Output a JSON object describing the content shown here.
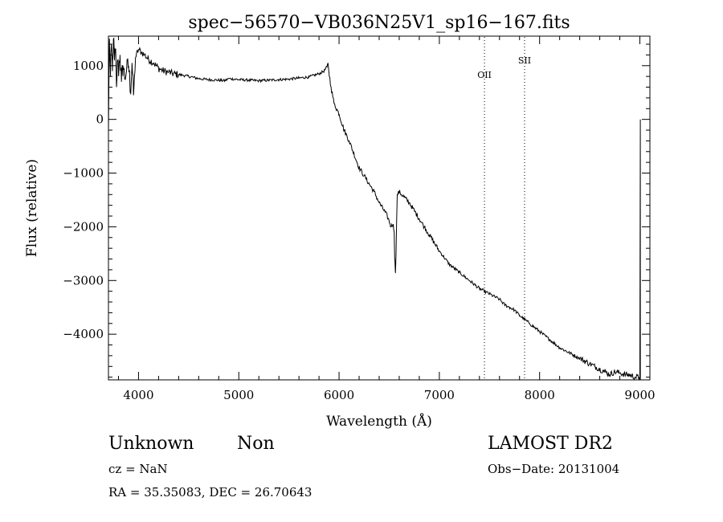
{
  "chart_data": {
    "type": "line",
    "title": "spec−56570−VB036N25V1_sp16−167.fits",
    "xlabel": "Wavelength (Å)",
    "ylabel": "Flux (relative)",
    "xlim": [
      3700,
      9100
    ],
    "ylim": [
      -4850,
      1550
    ],
    "xticks": [
      4000,
      5000,
      6000,
      7000,
      8000,
      9000
    ],
    "xtick_labels": [
      "4000",
      "5000",
      "6000",
      "7000",
      "8000",
      "9000"
    ],
    "yticks": [
      1000,
      0,
      -1000,
      -2000,
      -3000,
      -4000
    ],
    "ytick_labels": [
      "1000",
      "0",
      "−1000",
      "−2000",
      "−3000",
      "−4000"
    ],
    "grid": false,
    "line_color": "#000000",
    "series": [
      {
        "x": [
          3700,
          3710,
          3720,
          3730,
          3740,
          3750,
          3760,
          3770,
          3780,
          3790,
          3800,
          3815,
          3830,
          3845,
          3860,
          3880,
          3900,
          3920,
          3935,
          3950,
          3970,
          4000,
          4030,
          4060,
          4100,
          4150,
          4200,
          4250,
          4300,
          4340,
          4380,
          4450,
          4500,
          4600,
          4700,
          4800,
          4861,
          4900,
          5000,
          5100,
          5200,
          5300,
          5400,
          5500,
          5600,
          5700,
          5800,
          5850,
          5880,
          5890,
          5895,
          5900,
          5920,
          5950,
          6000,
          6050,
          6100,
          6150,
          6200,
          6250,
          6300,
          6350,
          6400,
          6450,
          6480,
          6500,
          6520,
          6540,
          6550,
          6555,
          6563,
          6570,
          6580,
          6600,
          6650,
          6700,
          6750,
          6800,
          6850,
          6900,
          6950,
          7000,
          7100,
          7200,
          7300,
          7400,
          7500,
          7600,
          7650,
          7700,
          7750,
          7800,
          7900,
          8000,
          8100,
          8200,
          8300,
          8400,
          8500,
          8550,
          8600,
          8650,
          8700,
          8750,
          8800,
          8850,
          8900,
          8950,
          8990,
          9000,
          9005
        ],
        "y": [
          -200,
          1500,
          800,
          1400,
          900,
          1500,
          1100,
          1300,
          600,
          1100,
          900,
          1200,
          700,
          1000,
          800,
          900,
          1000,
          550,
          1050,
          450,
          1150,
          1300,
          1250,
          1200,
          1120,
          1050,
          950,
          900,
          880,
          850,
          840,
          820,
          800,
          760,
          740,
          730,
          720,
          760,
          740,
          730,
          720,
          730,
          740,
          750,
          770,
          790,
          850,
          900,
          980,
          1050,
          950,
          860,
          600,
          300,
          100,
          -200,
          -400,
          -650,
          -900,
          -1050,
          -1200,
          -1350,
          -1550,
          -1700,
          -1800,
          -1900,
          -2000,
          -1950,
          -2100,
          -2600,
          -2850,
          -2300,
          -1400,
          -1350,
          -1450,
          -1550,
          -1700,
          -1850,
          -2000,
          -2150,
          -2300,
          -2450,
          -2700,
          -2850,
          -3000,
          -3150,
          -3250,
          -3350,
          -3450,
          -3500,
          -3550,
          -3650,
          -3800,
          -3950,
          -4100,
          -4250,
          -4350,
          -4450,
          -4550,
          -4600,
          -4650,
          -4700,
          -4750,
          -4700,
          -4720,
          -4750,
          -4760,
          -4800,
          -4800,
          -4800,
          0
        ]
      }
    ],
    "annotations": [
      {
        "text": "OII",
        "x": 7450
      },
      {
        "text": "SII",
        "x": 7850
      }
    ]
  },
  "footer": {
    "class_label": "Unknown",
    "subclass_label": "Non",
    "survey_label": "LAMOST DR2",
    "cz_text": "cz = NaN",
    "obs_date_text": "Obs−Date: 20131004",
    "radec_text": "RA =  35.35083, DEC =  26.70643"
  }
}
